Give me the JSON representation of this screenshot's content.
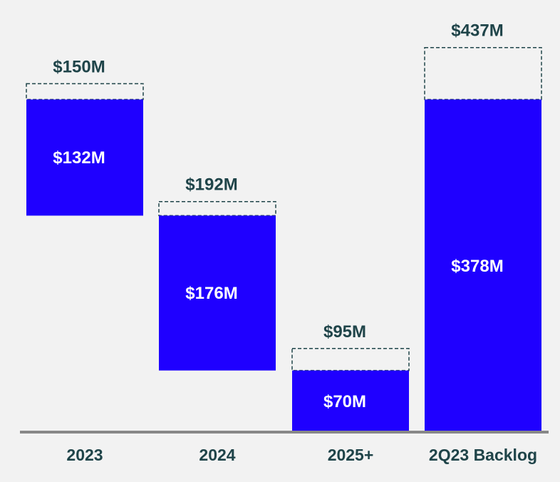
{
  "chart_data": {
    "type": "bar",
    "subtype": "waterfall",
    "title": "",
    "xlabel": "",
    "ylabel": "",
    "categories": [
      "2023",
      "2024",
      "2025+",
      "2Q23 Backlog"
    ],
    "series": [
      {
        "values": [
          132,
          176,
          70,
          378
        ],
        "labels": [
          "$132M",
          "$176M",
          "$70M",
          "$378M"
        ]
      },
      {
        "values": [
          150,
          192,
          95,
          437
        ],
        "labels": [
          "$150M",
          "$192M",
          "$95M",
          "$437M"
        ]
      }
    ],
    "units": "$M",
    "grid": false,
    "legend": "none",
    "colors": {
      "bar": "#1f00ff",
      "dashed_outline": "#1f4449",
      "axis": "#888888",
      "text_dark": "#1f4449",
      "background": "#f2f2f2"
    }
  }
}
